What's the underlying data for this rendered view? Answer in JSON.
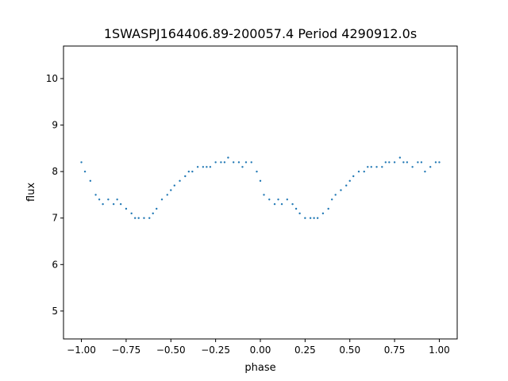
{
  "chart_data": {
    "type": "scatter",
    "title": "1SWASPJ164406.89-200057.4 Period 4290912.0s",
    "xlabel": "phase",
    "ylabel": "flux",
    "xlim": [
      -1.1,
      1.1
    ],
    "ylim": [
      4.4,
      10.7
    ],
    "x_ticks": [
      -1.0,
      -0.75,
      -0.5,
      -0.25,
      0.0,
      0.25,
      0.5,
      0.75,
      1.0
    ],
    "x_tick_labels": [
      "−1.00",
      "−0.75",
      "−0.50",
      "−0.25",
      "0.00",
      "0.25",
      "0.50",
      "0.75",
      "1.00"
    ],
    "y_ticks": [
      5,
      6,
      7,
      8,
      9,
      10
    ],
    "y_tick_labels": [
      "5",
      "6",
      "7",
      "8",
      "9",
      "10"
    ],
    "grid": false,
    "marker_color": "#1f77b4",
    "series": [
      {
        "x": [
          -1.0,
          -0.98,
          -0.95,
          -0.92,
          -0.9,
          -0.88,
          -0.85,
          -0.82,
          -0.8,
          -0.78,
          -0.75,
          -0.72,
          -0.7,
          -0.68,
          -0.65,
          -0.62,
          -0.6,
          -0.58,
          -0.55,
          -0.52,
          -0.5,
          -0.48,
          -0.45,
          -0.42,
          -0.4,
          -0.38,
          -0.35,
          -0.32,
          -0.3,
          -0.28,
          -0.25,
          -0.22,
          -0.2,
          -0.18,
          -0.15,
          -0.12,
          -0.1,
          -0.08,
          -0.05,
          -0.02,
          0.0,
          0.02,
          0.05,
          0.08,
          0.1,
          0.12,
          0.15,
          0.18,
          0.2,
          0.22,
          0.25,
          0.28,
          0.3,
          0.32,
          0.35,
          0.38,
          0.4,
          0.42,
          0.45,
          0.48,
          0.5,
          0.52,
          0.55,
          0.58,
          0.6,
          0.62,
          0.65,
          0.68,
          0.7,
          0.72,
          0.75,
          0.78,
          0.8,
          0.82,
          0.85,
          0.88,
          0.9,
          0.92,
          0.95,
          0.98,
          1.0
        ],
        "y": [
          8.2,
          8.0,
          7.8,
          7.5,
          7.4,
          7.3,
          7.4,
          7.3,
          7.4,
          7.3,
          7.2,
          7.1,
          7.0,
          7.0,
          7.0,
          7.0,
          7.1,
          7.2,
          7.4,
          7.5,
          7.6,
          7.7,
          7.8,
          7.9,
          8.0,
          8.0,
          8.1,
          8.1,
          8.1,
          8.1,
          8.2,
          8.2,
          8.2,
          8.3,
          8.2,
          8.2,
          8.1,
          8.2,
          8.2,
          8.0,
          7.8,
          7.5,
          7.4,
          7.3,
          7.4,
          7.3,
          7.4,
          7.3,
          7.2,
          7.1,
          7.0,
          7.0,
          7.0,
          7.0,
          7.1,
          7.2,
          7.4,
          7.5,
          7.6,
          7.7,
          7.8,
          7.9,
          8.0,
          8.0,
          8.1,
          8.1,
          8.1,
          8.1,
          8.2,
          8.2,
          8.2,
          8.3,
          8.2,
          8.2,
          8.1,
          8.2,
          8.2,
          8.0,
          8.1,
          8.2,
          8.2
        ]
      }
    ]
  }
}
